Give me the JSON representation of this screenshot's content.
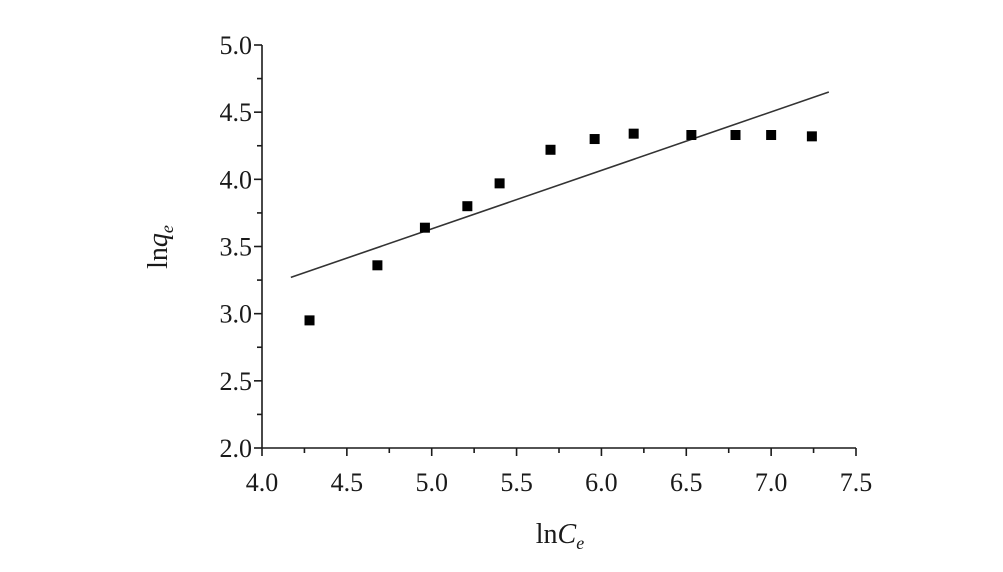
{
  "chart_data": {
    "type": "scatter",
    "title": "",
    "xlabel_main": "ln",
    "xlabel_var": "C",
    "xlabel_sub": "e",
    "ylabel_main": "ln",
    "ylabel_var": "q",
    "ylabel_sub": "e",
    "xlim": [
      4.0,
      7.5
    ],
    "ylim": [
      2.0,
      5.0
    ],
    "x_ticks": [
      "4.0",
      "4.5",
      "5.0",
      "5.5",
      "6.0",
      "6.5",
      "7.0",
      "7.5"
    ],
    "y_ticks": [
      "2.0",
      "2.5",
      "3.0",
      "3.5",
      "4.0",
      "4.5",
      "5.0"
    ],
    "grid": false,
    "points": [
      {
        "x": 4.28,
        "y": 2.95
      },
      {
        "x": 4.68,
        "y": 3.36
      },
      {
        "x": 4.96,
        "y": 3.64
      },
      {
        "x": 5.21,
        "y": 3.8
      },
      {
        "x": 5.4,
        "y": 3.97
      },
      {
        "x": 5.7,
        "y": 4.22
      },
      {
        "x": 5.96,
        "y": 4.3
      },
      {
        "x": 6.19,
        "y": 4.34
      },
      {
        "x": 6.53,
        "y": 4.33
      },
      {
        "x": 6.79,
        "y": 4.33
      },
      {
        "x": 7.0,
        "y": 4.33
      },
      {
        "x": 7.24,
        "y": 4.32
      }
    ],
    "fit_line": {
      "x": [
        4.17,
        7.34
      ],
      "y": [
        3.27,
        4.65
      ]
    }
  }
}
